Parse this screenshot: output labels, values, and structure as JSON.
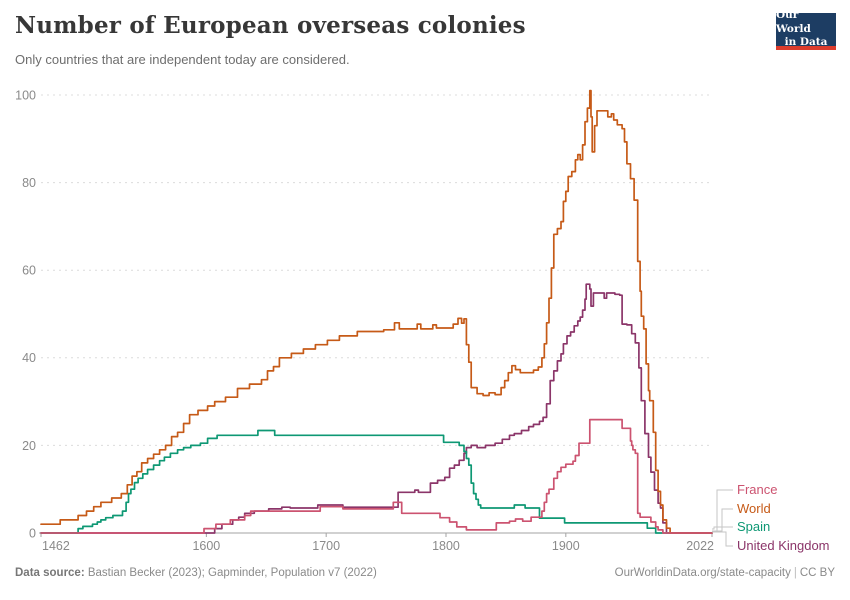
{
  "header": {
    "title": "Number of European overseas colonies",
    "subtitle": "Only countries that are independent today are considered."
  },
  "logo": {
    "line1": "Our World",
    "line2": "in Data"
  },
  "footer": {
    "source_label": "Data source:",
    "source_text": " Bastian Becker (2023); Gapminder, Population v7 (2022)",
    "url": "OurWorldinData.org/state-capacity",
    "separator": "|",
    "license": "CC BY"
  },
  "legend": {
    "items": [
      {
        "label": "France",
        "color": "#cc5370"
      },
      {
        "label": "World",
        "color": "#c65a17"
      },
      {
        "label": "Spain",
        "color": "#0e9874"
      },
      {
        "label": "United Kingdom",
        "color": "#8b3569"
      }
    ]
  },
  "chart_data": {
    "type": "line",
    "title": "Number of European overseas colonies",
    "subtitle": "Only countries that are independent today are considered.",
    "interpolation": "step-after",
    "grid": "dashed-horizontal",
    "legend_position": "right-bottom",
    "xlim": [
      1462,
      2022
    ],
    "ylim": [
      0,
      100
    ],
    "x_ticks": [
      1462,
      1600,
      1700,
      1800,
      1900,
      2022
    ],
    "y_ticks": [
      0,
      20,
      40,
      60,
      80,
      100
    ],
    "xlabel": "",
    "ylabel": "",
    "series": [
      {
        "name": "France",
        "color": "#cc5370",
        "points": [
          [
            1462,
            0
          ],
          [
            1598,
            1
          ],
          [
            1608,
            2
          ],
          [
            1620,
            3
          ],
          [
            1632,
            4
          ],
          [
            1637,
            5
          ],
          [
            1695,
            6
          ],
          [
            1714,
            5.5
          ],
          [
            1756,
            7
          ],
          [
            1763,
            4.5
          ],
          [
            1795,
            3.5
          ],
          [
            1803,
            2.5
          ],
          [
            1809,
            1.4
          ],
          [
            1817,
            0.7
          ],
          [
            1842,
            2.3
          ],
          [
            1853,
            2.7
          ],
          [
            1858,
            3.2
          ],
          [
            1864,
            2.7
          ],
          [
            1871,
            3.6
          ],
          [
            1880,
            5
          ],
          [
            1882,
            7
          ],
          [
            1884,
            9
          ],
          [
            1886,
            10
          ],
          [
            1890,
            12.5
          ],
          [
            1893,
            14
          ],
          [
            1896,
            15
          ],
          [
            1900,
            15.7
          ],
          [
            1906,
            16.4
          ],
          [
            1908,
            17.7
          ],
          [
            1911,
            20.5
          ],
          [
            1920,
            25.9
          ],
          [
            1947,
            23.9
          ],
          [
            1954,
            21
          ],
          [
            1955,
            20
          ],
          [
            1956,
            19
          ],
          [
            1958,
            18.2
          ],
          [
            1960,
            4.5
          ],
          [
            1962,
            3.6
          ],
          [
            1971,
            2.5
          ],
          [
            1975,
            1.4
          ],
          [
            1977,
            0.7
          ],
          [
            1981,
            0
          ],
          [
            2022,
            0
          ]
        ]
      },
      {
        "name": "World",
        "color": "#c65a17",
        "points": [
          [
            1462,
            2
          ],
          [
            1478,
            3
          ],
          [
            1493,
            4
          ],
          [
            1500,
            5
          ],
          [
            1506,
            6
          ],
          [
            1512,
            7
          ],
          [
            1521,
            8
          ],
          [
            1529,
            9
          ],
          [
            1534,
            11
          ],
          [
            1538,
            13
          ],
          [
            1542,
            14
          ],
          [
            1546,
            16
          ],
          [
            1551,
            17
          ],
          [
            1556,
            18
          ],
          [
            1561,
            19
          ],
          [
            1566,
            20
          ],
          [
            1571,
            22
          ],
          [
            1576,
            23
          ],
          [
            1581,
            25
          ],
          [
            1586,
            27
          ],
          [
            1593,
            28
          ],
          [
            1601,
            29
          ],
          [
            1607,
            30
          ],
          [
            1616,
            31
          ],
          [
            1626,
            33
          ],
          [
            1636,
            34
          ],
          [
            1646,
            35
          ],
          [
            1651,
            37
          ],
          [
            1656,
            38
          ],
          [
            1661,
            40
          ],
          [
            1671,
            41
          ],
          [
            1681,
            42
          ],
          [
            1691,
            43
          ],
          [
            1701,
            44
          ],
          [
            1711,
            45
          ],
          [
            1726,
            46
          ],
          [
            1748,
            46.4
          ],
          [
            1757,
            48
          ],
          [
            1761,
            46.6
          ],
          [
            1776,
            47.7
          ],
          [
            1779,
            46.6
          ],
          [
            1789,
            47.5
          ],
          [
            1792,
            46.8
          ],
          [
            1806,
            47.7
          ],
          [
            1810,
            49
          ],
          [
            1813,
            47.9
          ],
          [
            1815,
            48.9
          ],
          [
            1817,
            43
          ],
          [
            1819,
            39
          ],
          [
            1821,
            33.2
          ],
          [
            1826,
            31.8
          ],
          [
            1831,
            31.4
          ],
          [
            1836,
            32
          ],
          [
            1841,
            31.6
          ],
          [
            1846,
            33.2
          ],
          [
            1849,
            34.8
          ],
          [
            1852,
            36.6
          ],
          [
            1855,
            38.2
          ],
          [
            1858,
            37.3
          ],
          [
            1862,
            36.6
          ],
          [
            1873,
            37.2
          ],
          [
            1877,
            37.9
          ],
          [
            1880,
            40
          ],
          [
            1882,
            43.2
          ],
          [
            1884,
            48
          ],
          [
            1886,
            53.6
          ],
          [
            1888,
            60.5
          ],
          [
            1890,
            68.2
          ],
          [
            1893,
            69.5
          ],
          [
            1896,
            71.1
          ],
          [
            1898,
            75.7
          ],
          [
            1900,
            78
          ],
          [
            1902,
            81.4
          ],
          [
            1905,
            82.5
          ],
          [
            1908,
            85.2
          ],
          [
            1910,
            86.4
          ],
          [
            1912,
            85.2
          ],
          [
            1914,
            88.6
          ],
          [
            1916,
            93.9
          ],
          [
            1918,
            97
          ],
          [
            1920,
            101
          ],
          [
            1921,
            95
          ],
          [
            1922,
            87
          ],
          [
            1924,
            93
          ],
          [
            1926,
            96.4
          ],
          [
            1933,
            96.4
          ],
          [
            1935,
            95
          ],
          [
            1938,
            95.7
          ],
          [
            1940,
            94.3
          ],
          [
            1943,
            93.2
          ],
          [
            1947,
            92.3
          ],
          [
            1949,
            89.3
          ],
          [
            1951,
            84.3
          ],
          [
            1954,
            80.9
          ],
          [
            1957,
            76
          ],
          [
            1960,
            62
          ],
          [
            1962,
            55.2
          ],
          [
            1963,
            49.5
          ],
          [
            1965,
            46.6
          ],
          [
            1967,
            38.6
          ],
          [
            1969,
            32.5
          ],
          [
            1970,
            30.2
          ],
          [
            1973,
            23
          ],
          [
            1975,
            14.3
          ],
          [
            1977,
            9.5
          ],
          [
            1979,
            6.4
          ],
          [
            1981,
            3
          ],
          [
            1984,
            1.1
          ],
          [
            1987,
            0
          ],
          [
            2022,
            0
          ]
        ]
      },
      {
        "name": "Spain",
        "color": "#0e9874",
        "points": [
          [
            1462,
            0
          ],
          [
            1493,
            1
          ],
          [
            1497,
            1.5
          ],
          [
            1505,
            2
          ],
          [
            1509,
            2.5
          ],
          [
            1512,
            3
          ],
          [
            1516,
            3.5
          ],
          [
            1522,
            4
          ],
          [
            1530,
            5
          ],
          [
            1533,
            7
          ],
          [
            1535,
            9
          ],
          [
            1537,
            10
          ],
          [
            1540,
            11.5
          ],
          [
            1543,
            12.5
          ],
          [
            1547,
            13.5
          ],
          [
            1551,
            14.5
          ],
          [
            1556,
            15.5
          ],
          [
            1561,
            16.5
          ],
          [
            1565,
            17.3
          ],
          [
            1570,
            18.2
          ],
          [
            1576,
            19
          ],
          [
            1581,
            19.5
          ],
          [
            1587,
            20
          ],
          [
            1595,
            20.5
          ],
          [
            1601,
            21.6
          ],
          [
            1609,
            22.3
          ],
          [
            1643,
            23.4
          ],
          [
            1657,
            22.3
          ],
          [
            1798,
            20.7
          ],
          [
            1811,
            20
          ],
          [
            1815,
            18.6
          ],
          [
            1817,
            17
          ],
          [
            1819,
            15.5
          ],
          [
            1821,
            11.4
          ],
          [
            1823,
            9
          ],
          [
            1825,
            7.7
          ],
          [
            1827,
            6.4
          ],
          [
            1829,
            5.7
          ],
          [
            1857,
            6.4
          ],
          [
            1866,
            5.7
          ],
          [
            1878,
            3.4
          ],
          [
            1899,
            2.3
          ],
          [
            1968,
            1.1
          ],
          [
            1975,
            0
          ],
          [
            2022,
            0
          ]
        ]
      },
      {
        "name": "United Kingdom",
        "color": "#8b3569",
        "points": [
          [
            1462,
            0
          ],
          [
            1607,
            1
          ],
          [
            1613,
            2
          ],
          [
            1622,
            3
          ],
          [
            1627,
            3.6
          ],
          [
            1632,
            4.5
          ],
          [
            1640,
            5
          ],
          [
            1652,
            5.5
          ],
          [
            1663,
            5.9
          ],
          [
            1670,
            5.7
          ],
          [
            1693,
            6.4
          ],
          [
            1714,
            5.9
          ],
          [
            1760,
            9.3
          ],
          [
            1774,
            9.8
          ],
          [
            1777,
            9.3
          ],
          [
            1787,
            11.4
          ],
          [
            1793,
            12
          ],
          [
            1799,
            12.7
          ],
          [
            1803,
            14.8
          ],
          [
            1807,
            15.5
          ],
          [
            1811,
            16.6
          ],
          [
            1815,
            18.2
          ],
          [
            1817,
            19.5
          ],
          [
            1821,
            20
          ],
          [
            1826,
            19.5
          ],
          [
            1833,
            20
          ],
          [
            1841,
            20.5
          ],
          [
            1847,
            21.4
          ],
          [
            1853,
            22.3
          ],
          [
            1857,
            22.7
          ],
          [
            1863,
            23.4
          ],
          [
            1869,
            24.3
          ],
          [
            1873,
            24.8
          ],
          [
            1878,
            25.5
          ],
          [
            1881,
            26.4
          ],
          [
            1884,
            29.5
          ],
          [
            1887,
            34.8
          ],
          [
            1890,
            37
          ],
          [
            1893,
            39.3
          ],
          [
            1896,
            40.9
          ],
          [
            1898,
            43.2
          ],
          [
            1901,
            45
          ],
          [
            1904,
            45.9
          ],
          [
            1907,
            47.3
          ],
          [
            1910,
            48.4
          ],
          [
            1912,
            49.3
          ],
          [
            1914,
            50.9
          ],
          [
            1916,
            53.4
          ],
          [
            1917,
            56.8
          ],
          [
            1920,
            55.7
          ],
          [
            1921,
            51.8
          ],
          [
            1923,
            54.8
          ],
          [
            1931,
            54.8
          ],
          [
            1932,
            53.6
          ],
          [
            1934,
            54.8
          ],
          [
            1941,
            54.5
          ],
          [
            1945,
            54.3
          ],
          [
            1947,
            47.7
          ],
          [
            1951,
            47.5
          ],
          [
            1955,
            45.5
          ],
          [
            1958,
            43.4
          ],
          [
            1961,
            37.7
          ],
          [
            1963,
            30.2
          ],
          [
            1966,
            22.7
          ],
          [
            1969,
            17.3
          ],
          [
            1971,
            13.9
          ],
          [
            1974,
            9.8
          ],
          [
            1977,
            6.8
          ],
          [
            1979,
            5.7
          ],
          [
            1981,
            2.3
          ],
          [
            1984,
            0
          ],
          [
            2022,
            0
          ]
        ]
      }
    ]
  }
}
